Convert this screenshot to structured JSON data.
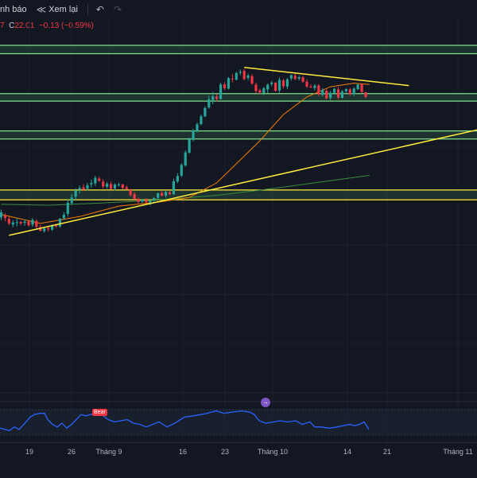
{
  "toolbar": {
    "alerts_label": "nh báo",
    "replay_label": "Xem lại",
    "replay_icon": "replay-icon",
    "undo_icon": "undo-icon",
    "redo_icon": "redo-icon"
  },
  "ohlc": {
    "prefix": "7",
    "close_label": "C",
    "close_value": "22.01",
    "change": "−0.13 (−0.59%)",
    "color": "#f23645"
  },
  "rsi": {
    "badge": "Bear",
    "color": "#2962ff"
  },
  "event_icon": "event-icon",
  "colors": {
    "up": "#26a69a",
    "down": "#f23645",
    "trendline": "#ffeb3b",
    "zone_fill": "#26473a",
    "zone_border": "#7ee08a",
    "ma_orange": "#f57c00",
    "ma_green": "#388e3c",
    "background": "#131722"
  },
  "chart_data": {
    "type": "candlestick",
    "x_ticks": [
      "19",
      "26",
      "Tháng 9",
      "16",
      "23",
      "Tháng 10",
      "14",
      "21",
      "Tháng 11"
    ],
    "grid": true,
    "candles": [
      [
        37.6,
        40.2,
        36.7,
        39.3
      ],
      [
        38.2,
        39.0,
        36.3,
        37.4
      ],
      [
        37.1,
        37.9,
        35.0,
        35.6
      ],
      [
        35.2,
        36.6,
        34.3,
        35.9
      ],
      [
        35.9,
        37.5,
        34.6,
        36.0
      ],
      [
        36.1,
        36.4,
        35.0,
        35.6
      ],
      [
        35.8,
        36.9,
        34.8,
        36.2
      ],
      [
        36.3,
        36.4,
        34.6,
        35.0
      ],
      [
        35.2,
        37.4,
        34.5,
        36.8
      ],
      [
        36.4,
        37.0,
        33.8,
        34.5
      ],
      [
        34.4,
        35.2,
        32.9,
        33.1
      ],
      [
        33.0,
        34.2,
        32.5,
        33.9
      ],
      [
        34.0,
        34.8,
        32.8,
        33.6
      ],
      [
        33.5,
        35.3,
        33.1,
        34.9
      ],
      [
        35.0,
        35.5,
        34.1,
        34.6
      ],
      [
        34.6,
        37.4,
        34.2,
        37.2
      ],
      [
        37.3,
        39.4,
        36.8,
        38.5
      ],
      [
        38.8,
        43.6,
        37.9,
        42.5
      ],
      [
        42.4,
        45.4,
        41.8,
        44.3
      ],
      [
        44.6,
        47.3,
        43.5,
        46.7
      ],
      [
        46.9,
        48.3,
        45.6,
        47.5
      ],
      [
        47.7,
        48.8,
        46.5,
        46.9
      ],
      [
        47.2,
        49.2,
        46.6,
        48.4
      ],
      [
        48.7,
        50.3,
        47.5,
        49.2
      ],
      [
        49.0,
        51.5,
        48.1,
        50.9
      ],
      [
        50.6,
        51.2,
        49.5,
        49.9
      ],
      [
        49.6,
        50.4,
        47.3,
        48.0
      ],
      [
        47.9,
        49.5,
        47.2,
        48.9
      ],
      [
        48.8,
        49.6,
        47.0,
        47.2
      ],
      [
        47.3,
        49.1,
        46.6,
        48.6
      ],
      [
        48.4,
        49.3,
        47.9,
        48.7
      ],
      [
        48.7,
        48.8,
        47.1,
        47.5
      ],
      [
        47.7,
        48.3,
        46.8,
        47.0
      ],
      [
        46.8,
        47.2,
        44.6,
        45.1
      ],
      [
        45.4,
        46.1,
        43.4,
        43.8
      ],
      [
        43.9,
        44.3,
        42.4,
        42.8
      ],
      [
        42.9,
        43.9,
        42.4,
        43.6
      ],
      [
        43.5,
        44.1,
        42.4,
        42.6
      ],
      [
        42.4,
        43.5,
        41.6,
        43.2
      ],
      [
        43.3,
        44.3,
        42.6,
        44.1
      ],
      [
        44.2,
        45.9,
        43.6,
        45.7
      ],
      [
        45.8,
        46.4,
        44.7,
        44.9
      ],
      [
        44.9,
        46.5,
        44.2,
        46.2
      ],
      [
        46.0,
        46.6,
        45.1,
        45.4
      ],
      [
        45.4,
        50.6,
        45.2,
        49.7
      ],
      [
        49.6,
        52.4,
        49.1,
        51.5
      ],
      [
        51.6,
        55.8,
        51.1,
        55.2
      ],
      [
        55.0,
        60.1,
        54.6,
        59.4
      ],
      [
        59.3,
        64.3,
        59.0,
        63.7
      ],
      [
        63.6,
        67.3,
        63.1,
        66.7
      ],
      [
        66.6,
        69.4,
        66.1,
        68.8
      ],
      [
        68.9,
        72.1,
        68.5,
        71.5
      ],
      [
        71.5,
        74.9,
        71.2,
        74.3
      ],
      [
        74.5,
        78.4,
        74.0,
        77.2
      ],
      [
        77.0,
        79.7,
        75.6,
        78.2
      ],
      [
        78.1,
        79.0,
        76.5,
        77.3
      ],
      [
        77.3,
        82.8,
        77.1,
        82.2
      ],
      [
        82.2,
        83.0,
        80.3,
        80.9
      ],
      [
        80.8,
        84.7,
        80.5,
        84.3
      ],
      [
        84.1,
        85.6,
        82.9,
        84.0
      ],
      [
        83.8,
        86.4,
        83.5,
        86.0
      ],
      [
        86.1,
        87.3,
        85.3,
        86.4
      ],
      [
        86.7,
        87.3,
        83.6,
        84.0
      ],
      [
        84.4,
        85.8,
        83.6,
        85.2
      ],
      [
        85.0,
        85.7,
        82.0,
        82.5
      ],
      [
        82.1,
        82.8,
        79.2,
        80.0
      ],
      [
        80.2,
        80.8,
        79.0,
        79.5
      ],
      [
        79.3,
        81.4,
        78.6,
        80.9
      ],
      [
        80.5,
        82.5,
        79.3,
        82.1
      ],
      [
        82.3,
        83.4,
        81.6,
        82.8
      ],
      [
        82.8,
        82.9,
        79.8,
        80.1
      ],
      [
        80.2,
        84.5,
        79.4,
        83.7
      ],
      [
        83.5,
        84.1,
        80.8,
        81.6
      ],
      [
        81.5,
        84.4,
        80.6,
        83.9
      ],
      [
        84.2,
        85.6,
        83.5,
        85.3
      ],
      [
        85.1,
        86.1,
        83.6,
        84.0
      ],
      [
        84.1,
        85.2,
        83.5,
        84.6
      ],
      [
        84.6,
        85.0,
        82.7,
        83.1
      ],
      [
        83.1,
        83.8,
        81.0,
        81.5
      ],
      [
        81.5,
        82.3,
        80.9,
        81.2
      ],
      [
        81.0,
        82.3,
        80.2,
        81.8
      ],
      [
        81.8,
        82.3,
        78.3,
        78.8
      ],
      [
        78.7,
        80.9,
        78.1,
        80.4
      ],
      [
        80.1,
        80.6,
        77.2,
        77.5
      ],
      [
        77.6,
        80.0,
        77.0,
        79.4
      ],
      [
        79.4,
        81.1,
        78.8,
        80.7
      ],
      [
        80.5,
        81.3,
        77.3,
        77.8
      ],
      [
        77.7,
        80.3,
        77.5,
        79.9
      ],
      [
        79.9,
        80.9,
        79.1,
        80.6
      ],
      [
        80.5,
        81.0,
        78.4,
        78.9
      ],
      [
        78.9,
        81.3,
        78.3,
        80.8
      ],
      [
        80.6,
        82.4,
        80.3,
        82.2
      ],
      [
        82.3,
        82.5,
        79.3,
        79.7
      ],
      [
        79.6,
        79.7,
        77.5,
        78.0
      ]
    ],
    "ma_orange": [
      [
        0,
        38.6
      ],
      [
        10,
        35.6
      ],
      [
        20,
        37.9
      ],
      [
        30,
        41.4
      ],
      [
        40,
        42.7
      ],
      [
        48,
        44.3
      ],
      [
        55,
        49.2
      ],
      [
        60,
        55.6
      ],
      [
        66,
        63.3
      ],
      [
        72,
        72.1
      ],
      [
        78,
        78.0
      ],
      [
        84,
        81.4
      ],
      [
        90,
        82.6
      ],
      [
        94,
        82.2
      ]
    ],
    "ma_green": [
      [
        0,
        42.0
      ],
      [
        12,
        41.7
      ],
      [
        25,
        42.4
      ],
      [
        40,
        43.4
      ],
      [
        55,
        45.0
      ],
      [
        70,
        47.4
      ],
      [
        85,
        50.1
      ],
      [
        94,
        51.7
      ]
    ],
    "resistance_zones": [
      [
        92.5,
        95.3
      ],
      [
        76.6,
        79.1
      ],
      [
        63.9,
        66.6
      ],
      [
        43.5,
        46.8
      ]
    ],
    "trendlines": [
      {
        "from": [
          2,
          31.6
        ],
        "to": [
          125,
          68.0
        ]
      },
      {
        "from": [
          62,
          87.9
        ],
        "to": [
          104,
          81.8
        ]
      }
    ],
    "rsi": {
      "values": [
        [
          0,
          14
        ],
        [
          6,
          13
        ],
        [
          12,
          12
        ],
        [
          18,
          15
        ],
        [
          24,
          13
        ],
        [
          30,
          17
        ],
        [
          38,
          23
        ],
        [
          43,
          25
        ],
        [
          50,
          26
        ],
        [
          56,
          26
        ],
        [
          60,
          21
        ],
        [
          66,
          17
        ],
        [
          72,
          15
        ],
        [
          78,
          18
        ],
        [
          84,
          14
        ],
        [
          90,
          17
        ],
        [
          96,
          21
        ],
        [
          102,
          25
        ],
        [
          108,
          24
        ],
        [
          114,
          25
        ],
        [
          120,
          26
        ],
        [
          128,
          25
        ],
        [
          136,
          21
        ],
        [
          144,
          19
        ],
        [
          152,
          20
        ],
        [
          160,
          21
        ],
        [
          168,
          18
        ],
        [
          176,
          17
        ],
        [
          184,
          15
        ],
        [
          192,
          17
        ],
        [
          200,
          19
        ],
        [
          210,
          15
        ],
        [
          220,
          18
        ],
        [
          232,
          23
        ],
        [
          244,
          24
        ],
        [
          252,
          25
        ],
        [
          260,
          26
        ],
        [
          272,
          28
        ],
        [
          282,
          26
        ],
        [
          292,
          27
        ],
        [
          304,
          28
        ],
        [
          314,
          27
        ],
        [
          320,
          25
        ],
        [
          326,
          20
        ],
        [
          334,
          18
        ],
        [
          344,
          19
        ],
        [
          352,
          20
        ],
        [
          362,
          19
        ],
        [
          372,
          20
        ],
        [
          380,
          17
        ],
        [
          390,
          19
        ],
        [
          396,
          15
        ],
        [
          404,
          15
        ],
        [
          414,
          14
        ],
        [
          424,
          15
        ],
        [
          432,
          16
        ],
        [
          440,
          17
        ],
        [
          446,
          16
        ],
        [
          452,
          17
        ],
        [
          458,
          19
        ],
        [
          464,
          13
        ]
      ],
      "badge_at": 120
    }
  }
}
